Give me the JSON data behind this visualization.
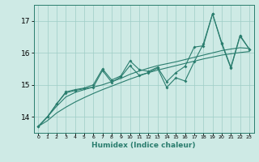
{
  "xlabel": "Humidex (Indice chaleur)",
  "x_values": [
    0,
    1,
    2,
    3,
    4,
    5,
    6,
    7,
    8,
    9,
    10,
    11,
    12,
    13,
    14,
    15,
    16,
    17,
    18,
    19,
    20,
    21,
    22,
    23
  ],
  "line1": [
    13.7,
    14.0,
    14.4,
    14.75,
    14.82,
    14.88,
    14.93,
    15.45,
    15.08,
    15.25,
    15.6,
    15.3,
    15.38,
    15.52,
    14.92,
    15.22,
    15.12,
    15.72,
    16.28,
    17.22,
    16.28,
    15.52,
    16.52,
    16.12
  ],
  "line2": [
    13.7,
    14.0,
    14.4,
    14.78,
    14.85,
    14.9,
    15.0,
    15.5,
    15.15,
    15.28,
    15.75,
    15.48,
    15.42,
    15.55,
    15.1,
    15.38,
    15.58,
    16.18,
    16.22,
    17.22,
    16.32,
    15.55,
    16.55,
    16.12
  ],
  "line3": [
    13.7,
    14.0,
    14.33,
    14.62,
    14.76,
    14.85,
    14.93,
    15.0,
    15.1,
    15.2,
    15.33,
    15.43,
    15.52,
    15.6,
    15.66,
    15.72,
    15.79,
    15.86,
    15.93,
    16.0,
    16.07,
    16.12,
    16.16,
    16.14
  ],
  "line4": [
    13.7,
    13.88,
    14.12,
    14.3,
    14.46,
    14.6,
    14.73,
    14.85,
    14.96,
    15.07,
    15.18,
    15.28,
    15.38,
    15.46,
    15.53,
    15.6,
    15.67,
    15.74,
    15.81,
    15.87,
    15.93,
    15.97,
    16.01,
    16.04
  ],
  "line_color": "#2a7d6e",
  "bg_color": "#ceeae5",
  "grid_color": "#9ecdc6",
  "ylim_min": 13.5,
  "ylim_max": 17.5,
  "yticks": [
    14,
    15,
    16,
    17
  ],
  "xlim_min": -0.5,
  "xlim_max": 23.5
}
